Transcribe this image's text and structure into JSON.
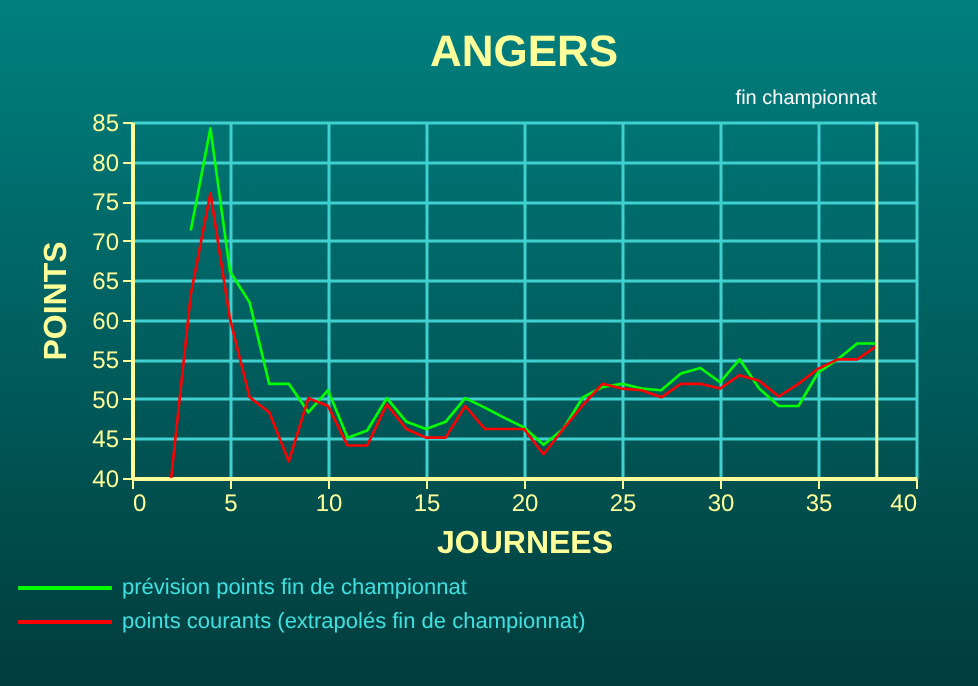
{
  "chart_data": {
    "type": "line",
    "title": "ANGERS",
    "xlabel": "JOURNEES",
    "ylabel": "POINTS",
    "xlim": [
      0,
      40
    ],
    "xticks": [
      0,
      5,
      10,
      15,
      20,
      25,
      30,
      35,
      40
    ],
    "ylim": [
      40,
      85
    ],
    "yticks": [
      40,
      45,
      50,
      55,
      60,
      65,
      70,
      75,
      80,
      85
    ],
    "grid": true,
    "legend": "bottom",
    "ref_lines": [
      {
        "axis": "x",
        "value": 38,
        "label": "fin championnat",
        "color": "#ffff99"
      }
    ],
    "series": [
      {
        "name": "prévision points fin de championnat",
        "color": "#00ff00",
        "x": [
          3,
          4,
          5,
          6,
          7,
          8,
          9,
          10,
          11,
          12,
          13,
          14,
          15,
          16,
          17,
          18,
          19,
          20,
          21,
          22,
          23,
          24,
          25,
          26,
          27,
          28,
          29,
          30,
          31,
          32,
          33,
          34,
          35,
          36,
          37,
          38
        ],
        "values": [
          71.3,
          84.2,
          66.1,
          62.2,
          51.9,
          51.9,
          48.3,
          51.1,
          45.1,
          46,
          50.1,
          47.1,
          46.2,
          47.1,
          50.1,
          48.9,
          47.6,
          46.4,
          44.2,
          46.2,
          50.2,
          51.5,
          51.9,
          51.3,
          51.1,
          53.2,
          53.9,
          52.1,
          55,
          51.3,
          49.1,
          49.1,
          53.3,
          55,
          57,
          57
        ]
      },
      {
        "name": "points courants (extrapolés fin de championnat)",
        "color": "#ff0000",
        "x": [
          2,
          3,
          4,
          5,
          6,
          7,
          8,
          9,
          10,
          11,
          12,
          13,
          14,
          15,
          16,
          17,
          18,
          19,
          20,
          21,
          22,
          23,
          24,
          25,
          26,
          27,
          28,
          29,
          30,
          31,
          32,
          33,
          34,
          35,
          36,
          37,
          38
        ],
        "values": [
          40,
          63.2,
          76,
          60.1,
          50.2,
          48.3,
          42.1,
          50.1,
          49.1,
          44.1,
          44.1,
          49.3,
          46.2,
          45.1,
          45.1,
          49.1,
          46.2,
          46.2,
          46.2,
          43,
          46.2,
          49.2,
          51.9,
          51.3,
          51.1,
          50.2,
          51.9,
          51.9,
          51.3,
          53,
          52.3,
          50.3,
          51.9,
          53.8,
          55,
          55,
          56.7
        ]
      }
    ]
  }
}
